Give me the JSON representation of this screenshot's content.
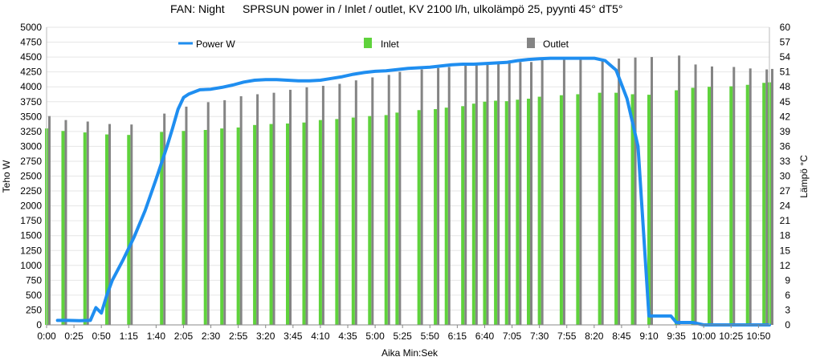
{
  "chart_data": {
    "type": "bar+line",
    "title_left": "FAN: Night",
    "title_right": "SPRSUN power in / Inlet / outlet, KV 2100 l/h, ulkolämpö 25, pyynti 45° dT5°",
    "xlabel": "Aika Min:Sek",
    "ylabel_left": "Teho W",
    "ylabel_right": "Lämpö °C",
    "y_left_range": [
      0,
      5000
    ],
    "y_left_ticks": [
      "0",
      "250",
      "500",
      "750",
      "1000",
      "1250",
      "1500",
      "1750",
      "2000",
      "2250",
      "2500",
      "2750",
      "3000",
      "3250",
      "3500",
      "3750",
      "4000",
      "4250",
      "4500",
      "4750",
      "5000"
    ],
    "y_right_range": [
      0,
      60
    ],
    "y_right_ticks": [
      "0",
      "3",
      "6",
      "9",
      "12",
      "15",
      "18",
      "21",
      "24",
      "27",
      "30",
      "33",
      "36",
      "39",
      "42",
      "45",
      "48",
      "51",
      "54",
      "57",
      "60"
    ],
    "x_tick_labels": [
      "0:00",
      "0:25",
      "0:50",
      "1:15",
      "1:40",
      "2:05",
      "2:30",
      "2:55",
      "3:20",
      "3:45",
      "4:10",
      "4:35",
      "5:00",
      "5:25",
      "5:50",
      "6:15",
      "6:40",
      "7:05",
      "7:30",
      "7:55",
      "8:20",
      "8:45",
      "9:10",
      "9:35",
      "10:00",
      "10:25",
      "10:50"
    ],
    "x_range_seconds": [
      0,
      660
    ],
    "legend": [
      "Power W",
      "Inlet",
      "Outlet"
    ],
    "colors": {
      "power": "#1f8ef0",
      "inlet": "#5fd23c",
      "outlet": "#848484"
    },
    "series": [
      {
        "name": "Power W",
        "type": "line",
        "axis": "left",
        "x_seconds": [
          10,
          20,
          30,
          40,
          45,
          50,
          55,
          60,
          70,
          80,
          90,
          100,
          110,
          115,
          120,
          125,
          130,
          140,
          150,
          160,
          170,
          180,
          190,
          200,
          210,
          220,
          230,
          240,
          250,
          260,
          270,
          280,
          290,
          300,
          310,
          320,
          330,
          340,
          350,
          360,
          370,
          380,
          390,
          400,
          410,
          420,
          430,
          440,
          450,
          460,
          470,
          480,
          490,
          500,
          510,
          520,
          530,
          540,
          550,
          560,
          565,
          570,
          575,
          580,
          590,
          600,
          610,
          620,
          630,
          640,
          650,
          660
        ],
        "values": [
          75,
          75,
          70,
          75,
          290,
          200,
          500,
          750,
          1100,
          1480,
          1920,
          2450,
          3000,
          3300,
          3620,
          3820,
          3880,
          3950,
          3960,
          3990,
          4030,
          4080,
          4110,
          4120,
          4120,
          4110,
          4100,
          4100,
          4110,
          4140,
          4170,
          4210,
          4240,
          4260,
          4270,
          4290,
          4310,
          4320,
          4330,
          4350,
          4370,
          4380,
          4380,
          4390,
          4400,
          4410,
          4440,
          4460,
          4470,
          4480,
          4480,
          4480,
          4480,
          4480,
          4440,
          4280,
          3800,
          3000,
          150,
          150,
          150,
          150,
          40,
          40,
          40,
          0,
          0,
          0,
          0,
          0,
          0,
          0
        ]
      },
      {
        "name": "Inlet",
        "type": "bar",
        "axis": "right",
        "x_seconds": [
          0,
          15,
          35,
          55,
          75,
          105,
          125,
          145,
          160,
          175,
          190,
          205,
          220,
          235,
          250,
          265,
          280,
          295,
          310,
          320,
          340,
          355,
          365,
          380,
          390,
          400,
          410,
          420,
          430,
          440,
          450,
          470,
          485,
          505,
          520,
          535,
          550,
          575,
          590,
          605,
          625,
          640,
          655,
          660
        ],
        "values": [
          39.6,
          39.1,
          38.8,
          38.4,
          38.3,
          38.9,
          39.1,
          39.3,
          39.6,
          39.8,
          40.3,
          40.5,
          40.6,
          40.8,
          41.3,
          41.5,
          41.8,
          42.1,
          42.3,
          42.8,
          43.3,
          43.5,
          43.8,
          44.1,
          44.6,
          45.0,
          45.2,
          45.1,
          45.4,
          45.6,
          46.0,
          46.3,
          46.5,
          46.8,
          46.8,
          46.5,
          46.4,
          47.3,
          47.8,
          48.0,
          48.1,
          48.4,
          48.8,
          48.9
        ]
      },
      {
        "name": "Outlet",
        "type": "bar",
        "axis": "right",
        "x_seconds": [
          0,
          15,
          35,
          55,
          75,
          105,
          125,
          145,
          160,
          175,
          190,
          205,
          220,
          235,
          250,
          265,
          280,
          295,
          310,
          320,
          340,
          355,
          365,
          380,
          390,
          400,
          410,
          420,
          430,
          440,
          450,
          470,
          485,
          505,
          520,
          535,
          550,
          575,
          590,
          605,
          625,
          640,
          655,
          660
        ],
        "values": [
          42.1,
          41.3,
          41.0,
          40.5,
          40.4,
          42.6,
          44.0,
          44.9,
          45.3,
          46.1,
          46.5,
          46.8,
          47.4,
          47.9,
          48.2,
          48.6,
          49.3,
          49.9,
          50.4,
          51.0,
          51.5,
          51.8,
          52.0,
          52.3,
          52.4,
          52.6,
          52.8,
          52.8,
          53.0,
          53.0,
          53.5,
          53.6,
          53.5,
          53.7,
          53.7,
          53.9,
          54.0,
          54.3,
          52.5,
          52.1,
          52.0,
          51.7,
          51.5,
          51.6
        ]
      }
    ]
  }
}
